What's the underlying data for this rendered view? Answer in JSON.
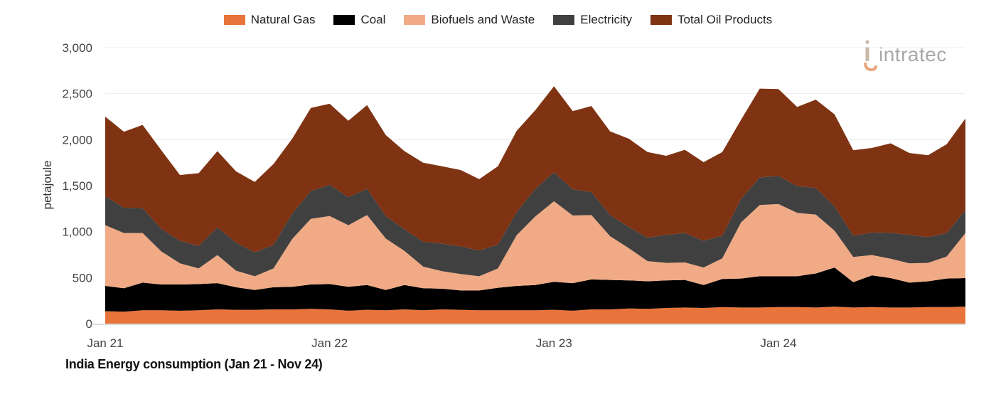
{
  "chart_data": {
    "type": "area",
    "stacked": true,
    "title": "India Energy consumption (Jan 21 - Nov 24)",
    "ylabel": "petajoule",
    "xlabel": "",
    "ylim": [
      0,
      3000
    ],
    "yticks": [
      "0",
      "500",
      "1,000",
      "1,500",
      "2,000",
      "2,500",
      "3,000"
    ],
    "ytick_values": [
      0,
      500,
      1000,
      1500,
      2000,
      2500,
      3000
    ],
    "xticks": [
      "Jan 21",
      "Jan 22",
      "Jan 23",
      "Jan 24"
    ],
    "xtick_indices": [
      0,
      12,
      24,
      36
    ],
    "legend_position": "top-center",
    "colors": {
      "Natural Gas": "#e8743b",
      "Coal": "#000000",
      "Biofuels and Waste": "#f0ab86",
      "Electricity": "#404040",
      "Total Oil Products": "#7f3313"
    },
    "series_order_legend": [
      "Natural Gas",
      "Coal",
      "Biofuels and Waste",
      "Electricity",
      "Total Oil Products"
    ],
    "months": [
      "Jan 21",
      "Feb 21",
      "Mar 21",
      "Apr 21",
      "May 21",
      "Jun 21",
      "Jul 21",
      "Aug 21",
      "Sep 21",
      "Oct 21",
      "Nov 21",
      "Dec 21",
      "Jan 22",
      "Feb 22",
      "Mar 22",
      "Apr 22",
      "May 22",
      "Jun 22",
      "Jul 22",
      "Aug 22",
      "Sep 22",
      "Oct 22",
      "Nov 22",
      "Dec 22",
      "Jan 23",
      "Feb 23",
      "Mar 23",
      "Apr 23",
      "May 23",
      "Jun 23",
      "Jul 23",
      "Aug 23",
      "Sep 23",
      "Oct 23",
      "Nov 23",
      "Dec 23",
      "Jan 24",
      "Feb 24",
      "Mar 24",
      "Apr 24",
      "May 24",
      "Jun 24",
      "Jul 24",
      "Aug 24",
      "Sep 24",
      "Oct 24",
      "Nov 24"
    ],
    "series": [
      {
        "name": "Natural Gas",
        "values": [
          135,
          130,
          145,
          145,
          140,
          145,
          155,
          150,
          150,
          155,
          155,
          160,
          155,
          140,
          150,
          145,
          155,
          145,
          155,
          150,
          145,
          145,
          145,
          145,
          150,
          140,
          155,
          155,
          165,
          160,
          170,
          175,
          170,
          180,
          175,
          175,
          180,
          180,
          175,
          185,
          175,
          180,
          175,
          175,
          180,
          180,
          185
        ]
      },
      {
        "name": "Coal",
        "values": [
          275,
          255,
          300,
          280,
          285,
          285,
          285,
          245,
          215,
          240,
          245,
          265,
          275,
          260,
          270,
          220,
          265,
          240,
          225,
          210,
          215,
          245,
          265,
          275,
          305,
          300,
          325,
          320,
          305,
          300,
          300,
          300,
          250,
          305,
          315,
          340,
          335,
          335,
          370,
          425,
          275,
          345,
          320,
          270,
          280,
          310,
          310
        ]
      },
      {
        "name": "Biofuels and Waste",
        "values": [
          660,
          600,
          540,
          360,
          230,
          170,
          305,
          180,
          150,
          205,
          520,
          715,
          740,
          670,
          760,
          560,
          370,
          235,
          190,
          180,
          155,
          210,
          550,
          745,
          875,
          735,
          700,
          475,
          350,
          220,
          190,
          190,
          190,
          225,
          610,
          775,
          785,
          690,
          640,
          400,
          275,
          220,
          210,
          210,
          200,
          240,
          490
        ]
      },
      {
        "name": "Electricity",
        "values": [
          315,
          275,
          270,
          245,
          245,
          245,
          300,
          305,
          260,
          255,
          275,
          300,
          340,
          305,
          285,
          245,
          235,
          270,
          300,
          300,
          280,
          260,
          250,
          300,
          315,
          285,
          250,
          230,
          230,
          255,
          305,
          320,
          290,
          245,
          255,
          300,
          305,
          290,
          290,
          265,
          230,
          245,
          280,
          310,
          280,
          255,
          250
        ]
      },
      {
        "name": "Total Oil Products",
        "values": [
          865,
          825,
          905,
          855,
          715,
          790,
          830,
          775,
          765,
          880,
          815,
          905,
          880,
          830,
          910,
          880,
          850,
          860,
          840,
          830,
          775,
          850,
          885,
          855,
          935,
          850,
          935,
          910,
          960,
          930,
          860,
          905,
          855,
          910,
          860,
          965,
          945,
          860,
          960,
          1000,
          930,
          920,
          975,
          890,
          890,
          965,
          995
        ]
      }
    ]
  },
  "watermark": {
    "brand": "intratec"
  }
}
